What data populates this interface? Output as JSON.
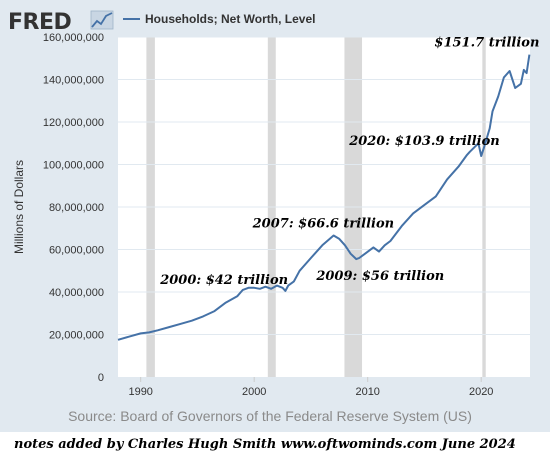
{
  "logo_text": "FRED",
  "source": "Source: Board of Governors of the Federal Reserve System (US)",
  "footer_note": "notes added by Charles Hugh Smith    www.oftwominds.com     June 2024",
  "colors": {
    "line": "#4572a7",
    "recession": "#d9d9d9",
    "plot_bg": "#ffffff",
    "frame_bg": "#e1e9f0",
    "grid": "#e1e9f0"
  },
  "chart_data": {
    "type": "line",
    "title": "",
    "xlabel": "",
    "ylabel": "Millions of Dollars",
    "xlim": [
      1988,
      2024.3
    ],
    "ylim": [
      0,
      160000000
    ],
    "grid": true,
    "legend": "top-left",
    "x_ticks": [
      "1990",
      "2000",
      "2010",
      "2020"
    ],
    "x_tick_values": [
      1990,
      2000,
      2010,
      2020
    ],
    "y_ticks": [
      "0",
      "20,000,000",
      "40,000,000",
      "60,000,000",
      "80,000,000",
      "100,000,000",
      "120,000,000",
      "140,000,000",
      "160,000,000"
    ],
    "y_tick_values": [
      0,
      20000000,
      40000000,
      60000000,
      80000000,
      100000000,
      120000000,
      140000000,
      160000000
    ],
    "recessions": [
      [
        1990.5,
        1991.25
      ],
      [
        2001.2,
        2001.9
      ],
      [
        2007.95,
        2009.5
      ],
      [
        2020.1,
        2020.4
      ]
    ],
    "series": [
      {
        "name": "Households; Net Worth, Level",
        "x": [
          1988.0,
          1989.0,
          1990.0,
          1990.75,
          1991.5,
          1992.5,
          1993.5,
          1994.5,
          1995.5,
          1996.5,
          1997.5,
          1998.5,
          1999.0,
          1999.5,
          2000.0,
          2000.5,
          2001.0,
          2001.5,
          2002.0,
          2002.5,
          2002.75,
          2003.0,
          2003.5,
          2004.0,
          2005.0,
          2006.0,
          2007.0,
          2007.5,
          2008.0,
          2008.5,
          2009.0,
          2009.25,
          2009.75,
          2010.5,
          2011.0,
          2011.5,
          2012.0,
          2013.0,
          2014.0,
          2015.0,
          2016.0,
          2017.0,
          2018.0,
          2018.75,
          2019.0,
          2019.75,
          2020.0,
          2020.25,
          2020.75,
          2021.0,
          2021.5,
          2022.0,
          2022.5,
          2023.0,
          2023.5,
          2023.75,
          2024.0,
          2024.25
        ],
        "y": [
          17500000,
          19000000,
          20500000,
          21000000,
          22000000,
          23500000,
          25000000,
          26500000,
          28500000,
          31000000,
          35000000,
          38000000,
          41000000,
          42000000,
          42000000,
          41500000,
          42500000,
          41500000,
          43000000,
          42000000,
          40500000,
          43000000,
          45000000,
          50000000,
          56000000,
          62000000,
          66600000,
          65000000,
          62000000,
          58000000,
          55500000,
          56000000,
          58000000,
          61000000,
          59000000,
          62000000,
          64000000,
          71000000,
          77000000,
          81000000,
          85000000,
          93000000,
          99000000,
          104500000,
          106000000,
          110000000,
          104000000,
          108000000,
          117000000,
          125000000,
          132000000,
          141000000,
          144000000,
          136000000,
          138000000,
          144500000,
          143000000,
          151700000
        ]
      }
    ],
    "annotations": [
      {
        "text": "$151.7 trillion",
        "x": 2024.25,
        "y": 151700000
      },
      {
        "text": "2020: $103.9 trillion",
        "x": 2020.0,
        "y": 104000000
      },
      {
        "text": "2007: $66.6 trillion",
        "x": 2007.0,
        "y": 66600000
      },
      {
        "text": "2000: $42 trillion",
        "x": 2000.0,
        "y": 42000000
      },
      {
        "text": "2009: $56 trillion",
        "x": 2009.0,
        "y": 55500000
      }
    ]
  }
}
